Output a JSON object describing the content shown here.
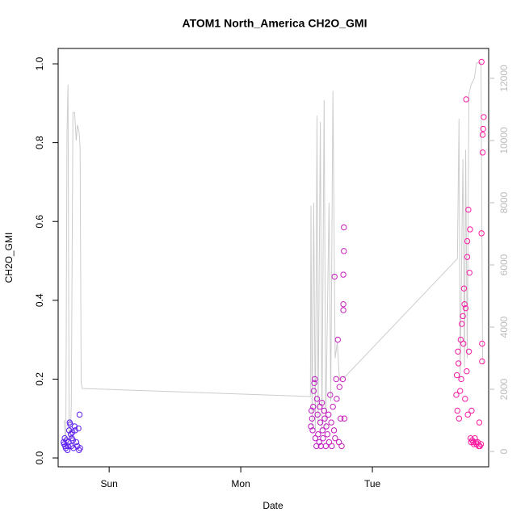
{
  "chart_data": {
    "type": "scatter",
    "title": "ATOM1 North_America CH2O_GMI",
    "x_label": "Date",
    "y_label": "CH2O_GMI",
    "xlim": [
      -9.3,
      69.2
    ],
    "xticks": [
      {
        "value": 0,
        "label": "Sun"
      },
      {
        "value": 24,
        "label": "Mon"
      },
      {
        "value": 48,
        "label": "Tue"
      }
    ],
    "ylim": [
      -0.0225,
      1.039
    ],
    "yticks": [
      {
        "value": 0,
        "label": "0.0"
      },
      0.2,
      0.4,
      0.6,
      0.8,
      {
        "value": 1,
        "label": "1.0"
      }
    ],
    "y2lim": [
      -494,
      12961
    ],
    "y2ticks": [
      0,
      2000,
      4000,
      6000,
      8000,
      10000,
      12000
    ],
    "y2_color": "#bbbbbb",
    "color_gradient": [
      "#5a1ff0",
      "#ff1aa0"
    ],
    "points": {
      "x": [
        -8.3,
        -8.2,
        -8.1,
        -8.0,
        -7.9,
        -7.8,
        -7.6,
        -7.5,
        -7.4,
        -7.3,
        -7.2,
        -7.1,
        -7.0,
        -6.9,
        -6.8,
        -6.7,
        -6.6,
        -6.5,
        -6.3,
        -6.2,
        -6.0,
        -5.8,
        -5.6,
        -5.5,
        -5.4,
        -5.3,
        36.8,
        36.9,
        37.0,
        37.1,
        37.2,
        37.3,
        37.4,
        37.5,
        37.6,
        37.8,
        37.9,
        38.0,
        38.1,
        38.3,
        38.4,
        38.5,
        38.6,
        38.8,
        38.9,
        39.0,
        39.2,
        39.3,
        39.5,
        39.6,
        39.8,
        40.0,
        40.1,
        40.3,
        40.5,
        40.6,
        40.8,
        41.0,
        41.1,
        41.2,
        41.4,
        41.5,
        41.7,
        41.9,
        42.0,
        42.2,
        42.4,
        42.6,
        42.7,
        42.7,
        42.7,
        42.8,
        42.8,
        42.9,
        63.3,
        63.4,
        63.5,
        63.6,
        63.7,
        63.8,
        64.0,
        64.1,
        64.2,
        64.3,
        64.5,
        64.6,
        64.7,
        64.8,
        64.9,
        65.0,
        65.1,
        65.2,
        65.3,
        65.3,
        65.4,
        65.5,
        65.6,
        65.7,
        65.8,
        65.9,
        66.0,
        66.1,
        66.2,
        66.4,
        66.5,
        66.7,
        66.9,
        67.0,
        67.2,
        67.4,
        67.5,
        67.6,
        67.8,
        67.9,
        67.9,
        68.0,
        68.0,
        68.1,
        68.1,
        68.2,
        68.3
      ],
      "values": [
        0.04,
        0.035,
        0.05,
        0.03,
        0.025,
        0.045,
        0.02,
        0.03,
        0.04,
        0.07,
        0.09,
        0.085,
        0.06,
        0.03,
        0.05,
        0.065,
        0.045,
        0.025,
        0.08,
        0.07,
        0.04,
        0.03,
        0.075,
        0.02,
        0.11,
        0.025,
        0.08,
        0.12,
        0.1,
        0.07,
        0.13,
        0.17,
        0.19,
        0.2,
        0.05,
        0.03,
        0.15,
        0.11,
        0.06,
        0.04,
        0.13,
        0.09,
        0.03,
        0.14,
        0.07,
        0.05,
        0.12,
        0.1,
        0.03,
        0.08,
        0.06,
        0.11,
        0.04,
        0.16,
        0.09,
        0.03,
        0.13,
        0.07,
        0.46,
        0.05,
        0.2,
        0.15,
        0.3,
        0.04,
        0.18,
        0.1,
        0.03,
        0.2,
        0.375,
        0.39,
        0.465,
        0.525,
        0.585,
        0.1,
        0.16,
        0.21,
        0.12,
        0.27,
        0.24,
        0.1,
        0.17,
        0.3,
        0.2,
        0.34,
        0.36,
        0.29,
        0.43,
        0.39,
        0.15,
        0.38,
        0.91,
        0.22,
        0.51,
        0.55,
        0.11,
        0.63,
        0.27,
        0.47,
        0.58,
        0.05,
        0.04,
        0.12,
        0.045,
        0.04,
        0.035,
        0.05,
        0.04,
        0.035,
        0.04,
        0.03,
        0.09,
        0.03,
        0.035,
        1.005,
        0.57,
        0.29,
        0.245,
        0.82,
        0.775,
        0.835,
        0.865
      ]
    },
    "line": {
      "axis": "y2",
      "color": "#cccccc",
      "x": [
        -8.2,
        -7.9,
        -7.7,
        -7.5,
        -7.3,
        -7.1,
        -6.9,
        -6.6,
        -6.3,
        -6.0,
        -5.8,
        -5.5,
        -5.3,
        -5.1,
        -4.9,
        36.7,
        36.8,
        37.0,
        37.3,
        37.6,
        37.9,
        38.1,
        38.5,
        38.8,
        39.2,
        39.5,
        40.1,
        40.4,
        40.8,
        41.2,
        41.6,
        42.0,
        43.0,
        63.5,
        63.8,
        64.0,
        64.5,
        64.8,
        65.0,
        65.3,
        65.6,
        66.0,
        66.6,
        67.0,
        67.8,
        68.1,
        68.3
      ],
      "values": [
        1000,
        200,
        10200,
        11800,
        600,
        300,
        1500,
        10900,
        10900,
        10000,
        10500,
        10300,
        9800,
        2200,
        2026,
        1766,
        7900,
        800,
        8000,
        700,
        10800,
        900,
        10600,
        700,
        11300,
        800,
        8000,
        1600,
        11600,
        3000,
        3500,
        2300,
        2400,
        6200,
        10700,
        2300,
        9400,
        2700,
        9700,
        3000,
        11500,
        11800,
        12000,
        12500,
        12500,
        3000,
        2800
      ]
    }
  }
}
